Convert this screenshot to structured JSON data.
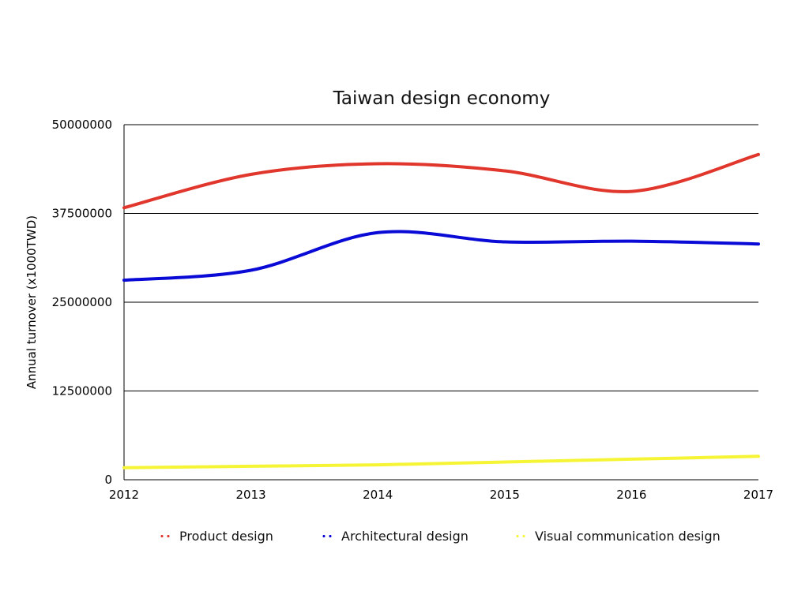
{
  "chart_data": {
    "type": "line",
    "title": "Taiwan design economy",
    "xlabel": "",
    "ylabel": "Annual turnover (x1000TWD)",
    "x": [
      "2012",
      "2013",
      "2014",
      "2015",
      "2016",
      "2017"
    ],
    "ylim": [
      0,
      50000000
    ],
    "yticks": [
      "0",
      "12500000",
      "25000000",
      "37500000",
      "50000000"
    ],
    "grid": "horizontal",
    "legend_position": "bottom",
    "series": [
      {
        "name": "Product design",
        "color": "#e0362c",
        "values": [
          38300000,
          43000000,
          44500000,
          43500000,
          40600000,
          45800000
        ]
      },
      {
        "name": "Architectural design",
        "color": "#0a0ad6",
        "values": [
          28100000,
          29500000,
          34800000,
          33500000,
          33600000,
          33200000
        ]
      },
      {
        "name": "Visual communication design",
        "color": "#f5f536",
        "values": [
          1700000,
          1900000,
          2100000,
          2500000,
          2900000,
          3300000
        ]
      }
    ]
  }
}
